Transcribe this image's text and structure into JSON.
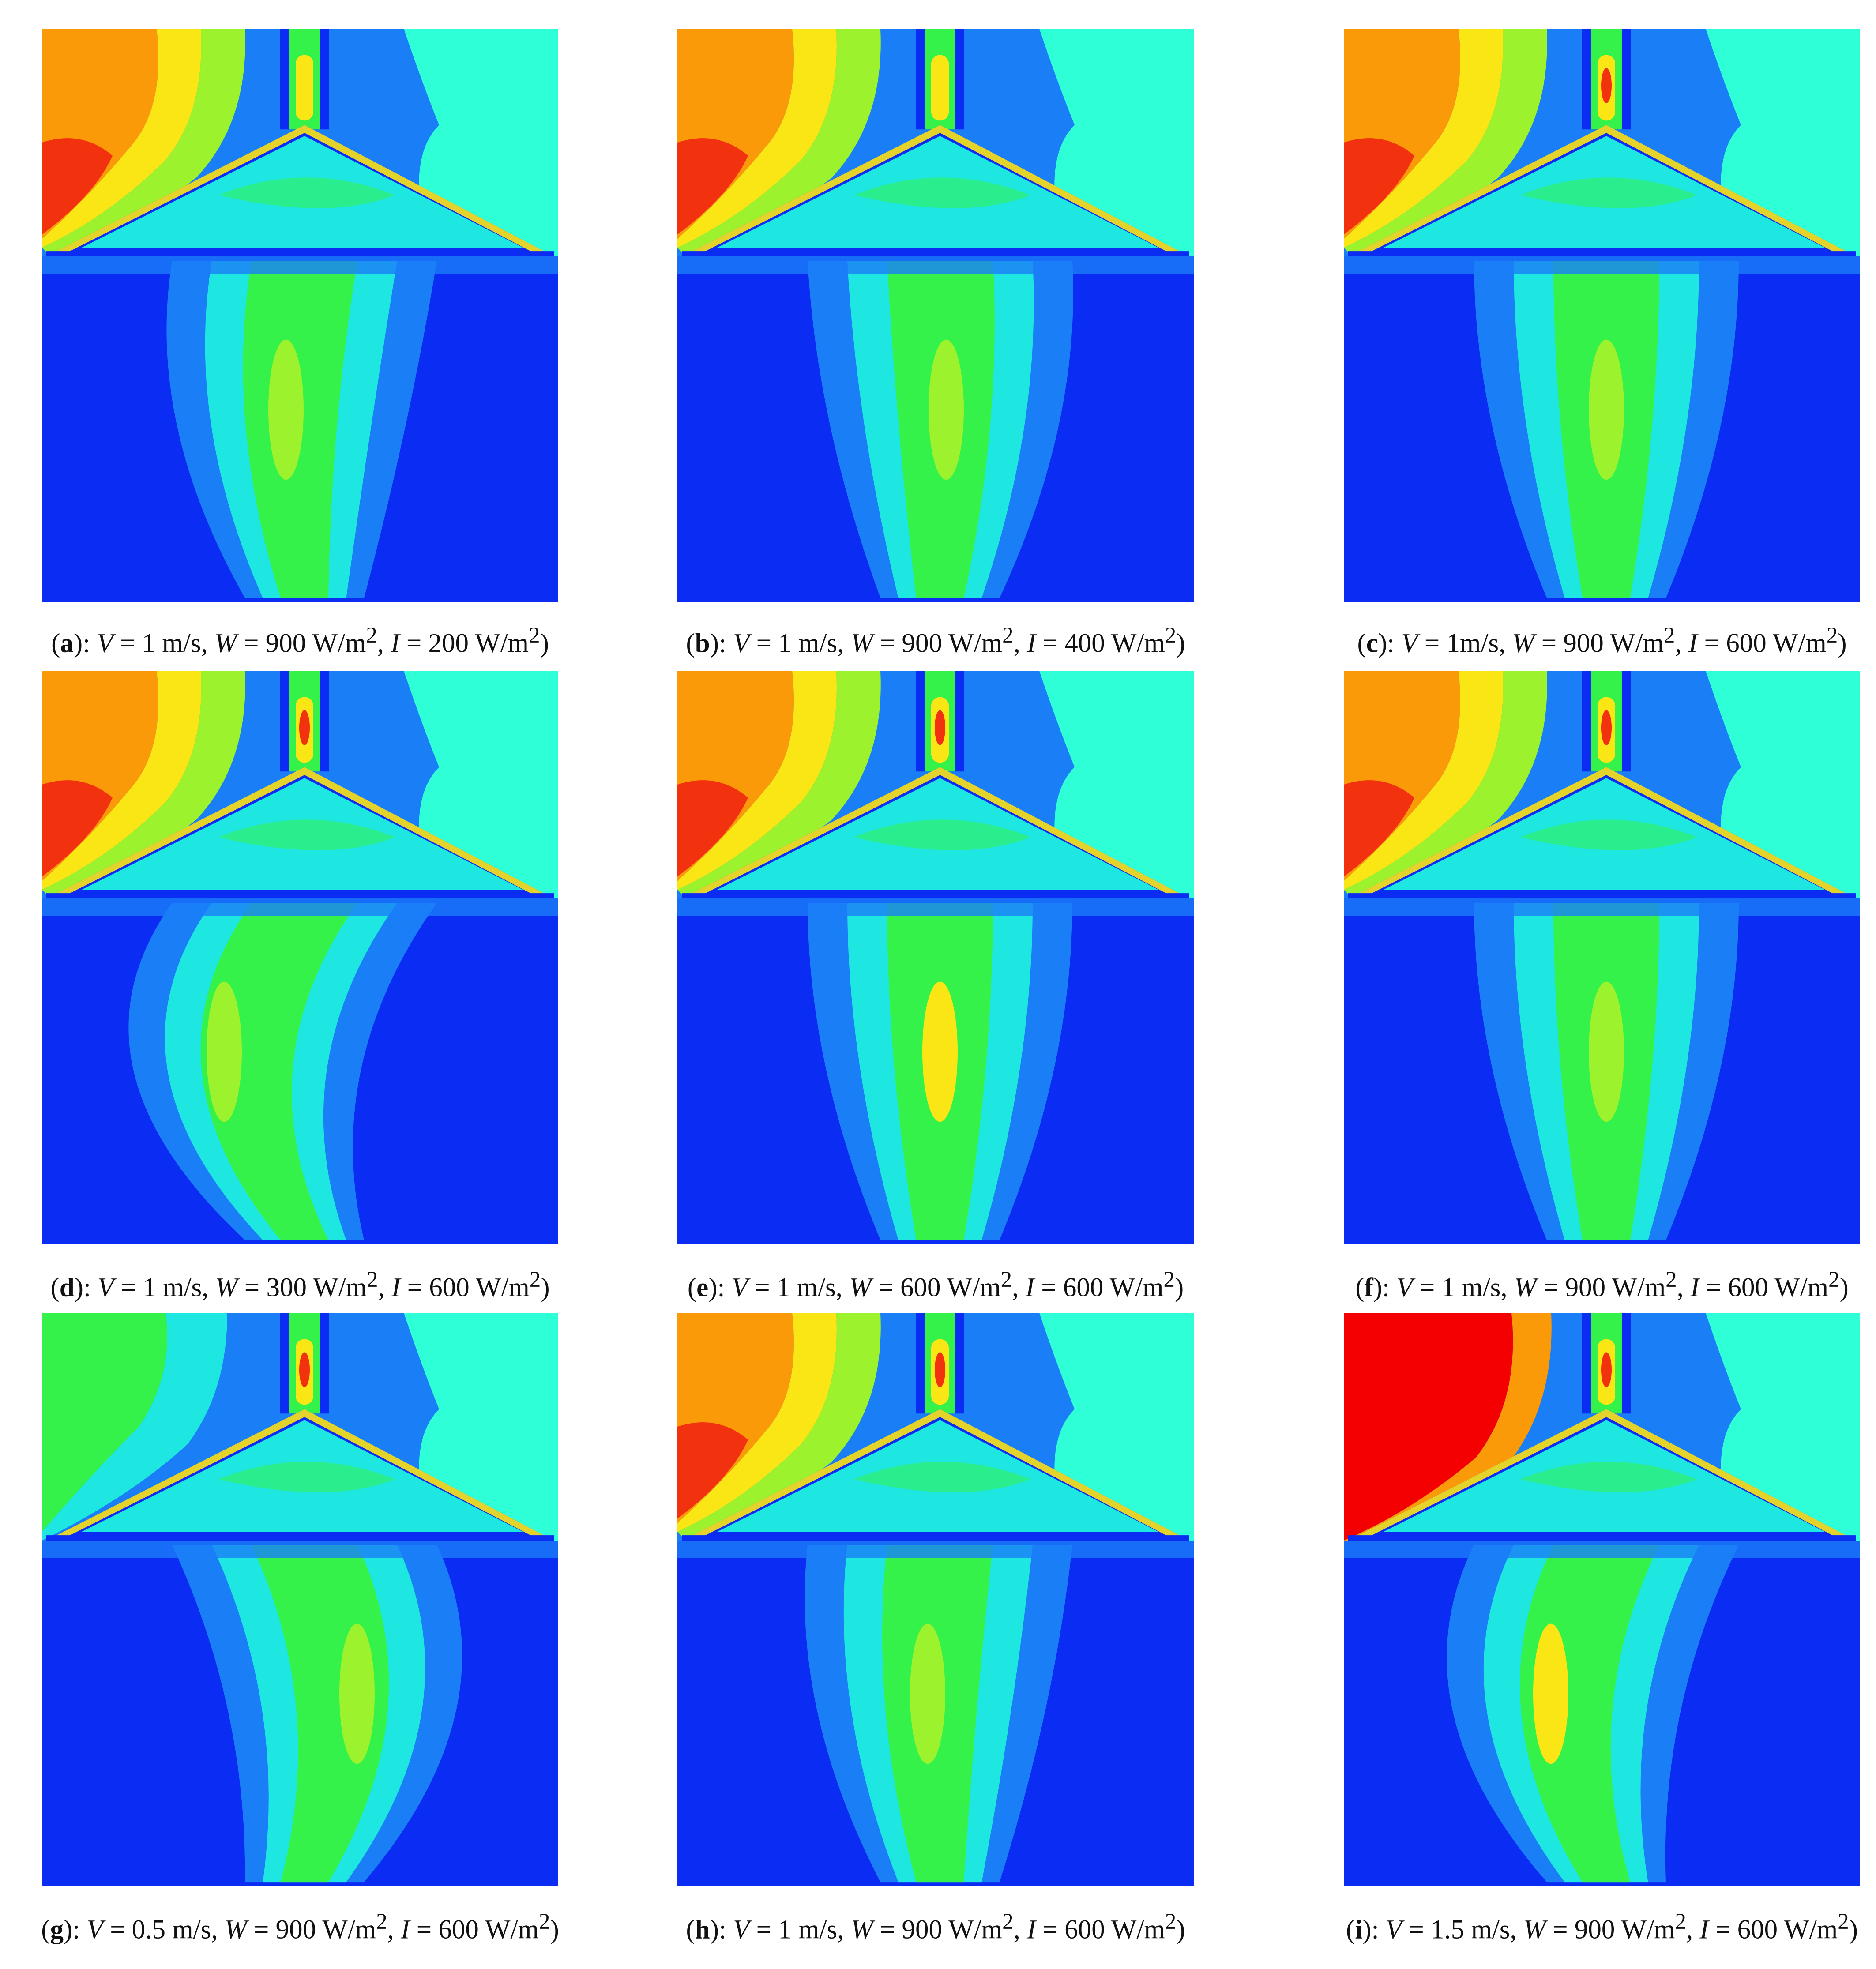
{
  "colors": {
    "deep_blue": "#0b2cf2",
    "blue": "#1a7ef7",
    "cyan": "#1ee6e0",
    "aqua": "#2fffd6",
    "green": "#34f24a",
    "lime": "#9cf22c",
    "yellow": "#fbe615",
    "orange": "#fa9a08",
    "red": "#f2310e",
    "bright_red": "#f50000"
  },
  "panels": [
    {
      "id": "a",
      "label": "a",
      "sep": "): ",
      "v": "1 m/s",
      "w": "900 W/m",
      "i": "200 W/m",
      "v_eq": " = ",
      "hot": "red"
    },
    {
      "id": "b",
      "label": "b",
      "sep": "): ",
      "v": "1 m/s",
      "w": "900 W/m",
      "i": "400 W/m",
      "v_eq": " = ",
      "hot": "red"
    },
    {
      "id": "c",
      "label": "c",
      "sep": "): ",
      "v": "1m/s",
      "w": "900 W/m",
      "i": "600 W/m",
      "v_eq": " = ",
      "hot": "red"
    },
    {
      "id": "d",
      "label": "d",
      "sep": "): ",
      "v": "1 m/s",
      "w": "300 W/m",
      "i": "600 W/m",
      "v_eq": " = ",
      "hot": "red"
    },
    {
      "id": "e",
      "label": "e",
      "sep": "): ",
      "v": "1 m/s",
      "w": "600 W/m",
      "i": "600 W/m",
      "v_eq": " = ",
      "hot": "red"
    },
    {
      "id": "f",
      "label": "f",
      "sep": "): ",
      "v": "1 m/s",
      "w": "900 W/m",
      "i": "600 W/m",
      "v_eq": " = ",
      "hot": "red"
    },
    {
      "id": "g",
      "label": "g",
      "sep": "): ",
      "v": "0.5 m/s",
      "w": "900 W/m",
      "i": "600 W/m",
      "v_eq": " = ",
      "hot": "green"
    },
    {
      "id": "h",
      "label": "h",
      "sep": "): ",
      "v": "1 m/s",
      "w": "900 W/m",
      "i": "600 W/m",
      "v_eq": " = ",
      "hot": "red"
    },
    {
      "id": "i",
      "label": "i",
      "sep": "): ",
      "v": "1.5 m/s",
      "w": "900 W/m",
      "i": "600 W/m",
      "v_eq": " = ",
      "hot": "bright_red"
    }
  ],
  "caption_parts": {
    "open": "(",
    "v_var": "V",
    "w_var": "W",
    "i_var": "I",
    "comma": ", ",
    "eq": " = ",
    "sup": "2",
    "close": ")"
  }
}
